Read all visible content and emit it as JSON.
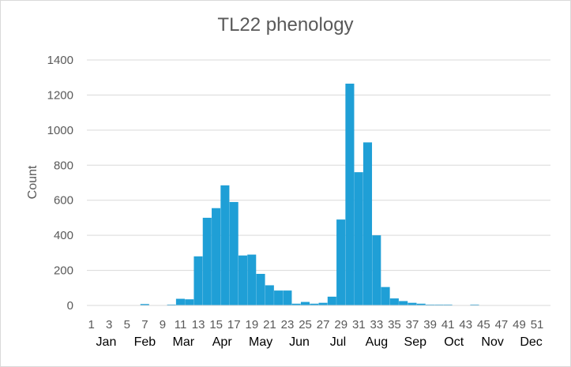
{
  "chart_data": {
    "type": "bar",
    "title": "TL22 phenology",
    "ylabel": "Count",
    "xlabel": "",
    "ylim": [
      0,
      1400
    ],
    "y_ticks": [
      0,
      200,
      400,
      600,
      800,
      1000,
      1200,
      1400
    ],
    "grid": true,
    "legend": "none",
    "bar_color": "#1f9fd6",
    "categories": [
      1,
      2,
      3,
      4,
      5,
      6,
      7,
      8,
      9,
      10,
      11,
      12,
      13,
      14,
      15,
      16,
      17,
      18,
      19,
      20,
      21,
      22,
      23,
      24,
      25,
      26,
      27,
      28,
      29,
      30,
      31,
      32,
      33,
      34,
      35,
      36,
      37,
      38,
      39,
      40,
      41,
      42,
      43,
      44,
      45,
      46,
      47,
      48,
      49,
      50,
      51,
      52
    ],
    "x_tick_labels": [
      1,
      3,
      5,
      7,
      9,
      11,
      13,
      15,
      17,
      19,
      21,
      23,
      25,
      27,
      29,
      31,
      33,
      35,
      37,
      39,
      41,
      43,
      45,
      47,
      49,
      51
    ],
    "values": [
      0,
      0,
      0,
      0,
      0,
      0,
      8,
      0,
      0,
      5,
      38,
      35,
      280,
      500,
      555,
      685,
      590,
      285,
      290,
      180,
      115,
      85,
      85,
      10,
      20,
      10,
      15,
      50,
      490,
      1265,
      760,
      930,
      400,
      105,
      40,
      25,
      15,
      10,
      5,
      5,
      5,
      0,
      0,
      5,
      0,
      0,
      0,
      0,
      0,
      0,
      0,
      0
    ],
    "months": [
      "Jan",
      "Feb",
      "Mar",
      "Apr",
      "May",
      "Jun",
      "Jul",
      "Aug",
      "Sep",
      "Oct",
      "Nov",
      "Dec"
    ]
  }
}
